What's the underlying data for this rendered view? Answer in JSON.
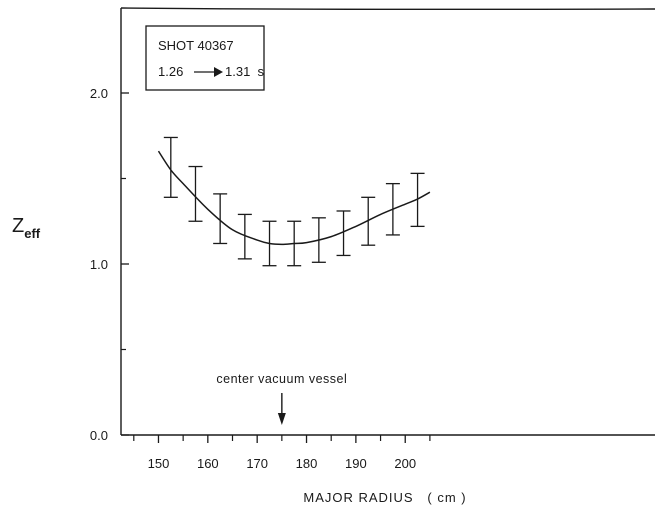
{
  "chart_data": {
    "type": "line",
    "xlabel": "MAJOR RADIUS   ( cm )",
    "ylabel": "Z",
    "ylabel_subscript": "eff",
    "xlim": [
      145,
      207
    ],
    "ylim": [
      0.0,
      2.5
    ],
    "x_ticks": [
      150,
      160,
      170,
      180,
      190,
      200
    ],
    "y_ticks": [
      0.0,
      1.0,
      2.0
    ],
    "y_tick_labels": [
      "0.0",
      "1.0",
      "2.0"
    ],
    "grid": false,
    "legend_box": {
      "line1": "SHOT 40367",
      "line2_start": "1.26",
      "line2_end": "1.31  s"
    },
    "annotation": {
      "text": "center vacuum vessel",
      "x": 175
    },
    "series": [
      {
        "kind": "fit-curve",
        "x": [
          150,
          152.5,
          155,
          160,
          165,
          170,
          172.5,
          175,
          177.5,
          180,
          185,
          190,
          195,
          200,
          202.5,
          205
        ],
        "y": [
          1.66,
          1.55,
          1.47,
          1.32,
          1.2,
          1.14,
          1.12,
          1.115,
          1.12,
          1.125,
          1.16,
          1.22,
          1.29,
          1.35,
          1.38,
          1.42
        ]
      },
      {
        "kind": "error-bars",
        "x": [
          152.5,
          157.5,
          162.5,
          167.5,
          172.5,
          177.5,
          182.5,
          187.5,
          192.5,
          197.5,
          202.5
        ],
        "center": [
          1.56,
          1.41,
          1.26,
          1.16,
          1.12,
          1.12,
          1.14,
          1.18,
          1.25,
          1.32,
          1.38
        ],
        "low": [
          1.39,
          1.25,
          1.12,
          1.03,
          0.99,
          0.99,
          1.01,
          1.05,
          1.11,
          1.17,
          1.22
        ],
        "high": [
          1.74,
          1.57,
          1.41,
          1.29,
          1.25,
          1.25,
          1.27,
          1.31,
          1.39,
          1.47,
          1.53
        ]
      }
    ]
  }
}
